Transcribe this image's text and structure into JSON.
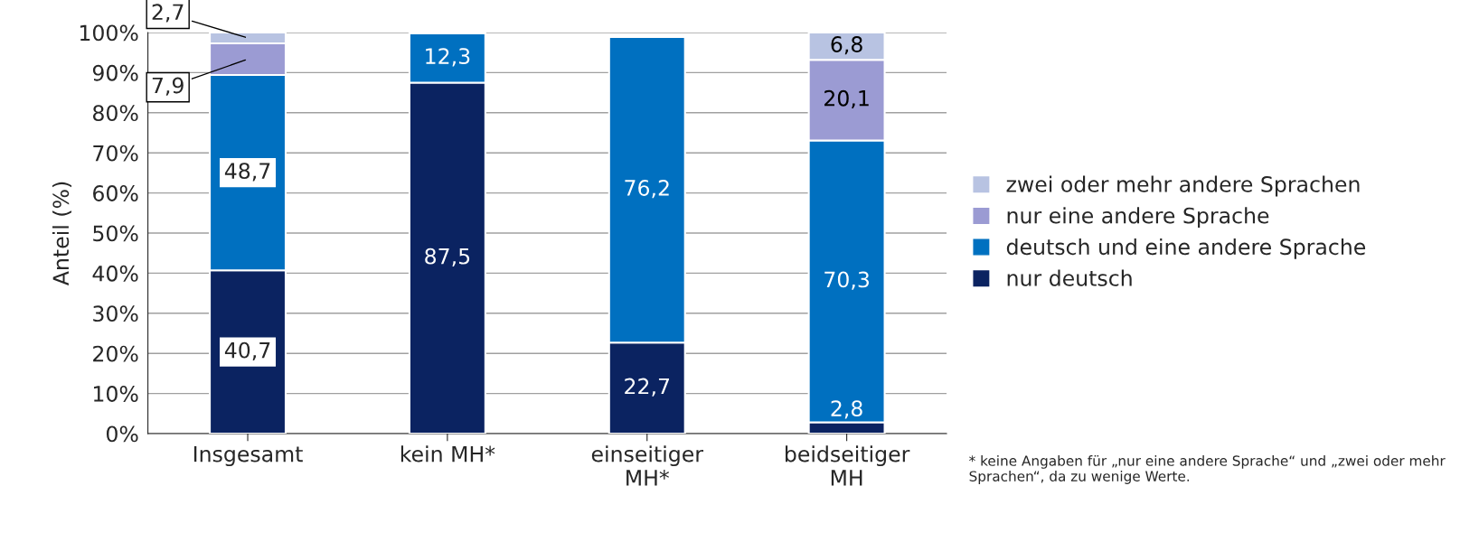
{
  "chart_data": {
    "type": "bar",
    "stacked": true,
    "ylabel": "Anteil (%)",
    "categories": [
      "Insgesamt",
      "kein MH*",
      "einseitiger\nMH*",
      "beidseitiger\nMH"
    ],
    "series": [
      {
        "name": "nur deutsch",
        "color": "#0b2361",
        "values": [
          40.7,
          87.5,
          22.7,
          2.8
        ],
        "value_labels": [
          "40,7",
          "87,5",
          "22,7",
          "2,8"
        ]
      },
      {
        "name": "deutsch und eine andere Sprache",
        "color": "#0070c0",
        "values": [
          48.7,
          12.3,
          76.2,
          70.3
        ],
        "value_labels": [
          "48,7",
          "12,3",
          "76,2",
          "70,3"
        ]
      },
      {
        "name": "nur eine andere Sprache",
        "color": "#9b9bd3",
        "values": [
          7.9,
          null,
          null,
          20.1
        ],
        "value_labels": [
          "7,9",
          null,
          null,
          "20,1"
        ]
      },
      {
        "name": "zwei oder mehr andere Sprachen",
        "color": "#b8c3e2",
        "values": [
          2.7,
          null,
          null,
          6.8
        ],
        "value_labels": [
          "2,7",
          null,
          null,
          "6,8"
        ]
      }
    ],
    "ylim": [
      0,
      100
    ],
    "yticks": [
      {
        "value": 0,
        "label": "0%"
      },
      {
        "value": 10,
        "label": "10%"
      },
      {
        "value": 20,
        "label": "20%"
      },
      {
        "value": 30,
        "label": "30%"
      },
      {
        "value": 40,
        "label": "40%"
      },
      {
        "value": 50,
        "label": "50%"
      },
      {
        "value": 60,
        "label": "60%"
      },
      {
        "value": 70,
        "label": "70%"
      },
      {
        "value": 80,
        "label": "80%"
      },
      {
        "value": 90,
        "label": "90%"
      },
      {
        "value": 100,
        "label": "100%"
      }
    ],
    "grid": "y",
    "legend": "right",
    "annotations": [
      "* keine Angaben für „nur eine andere Sprache“ und „zwei oder mehr Sprachen“, da zu wenige Werte."
    ]
  }
}
